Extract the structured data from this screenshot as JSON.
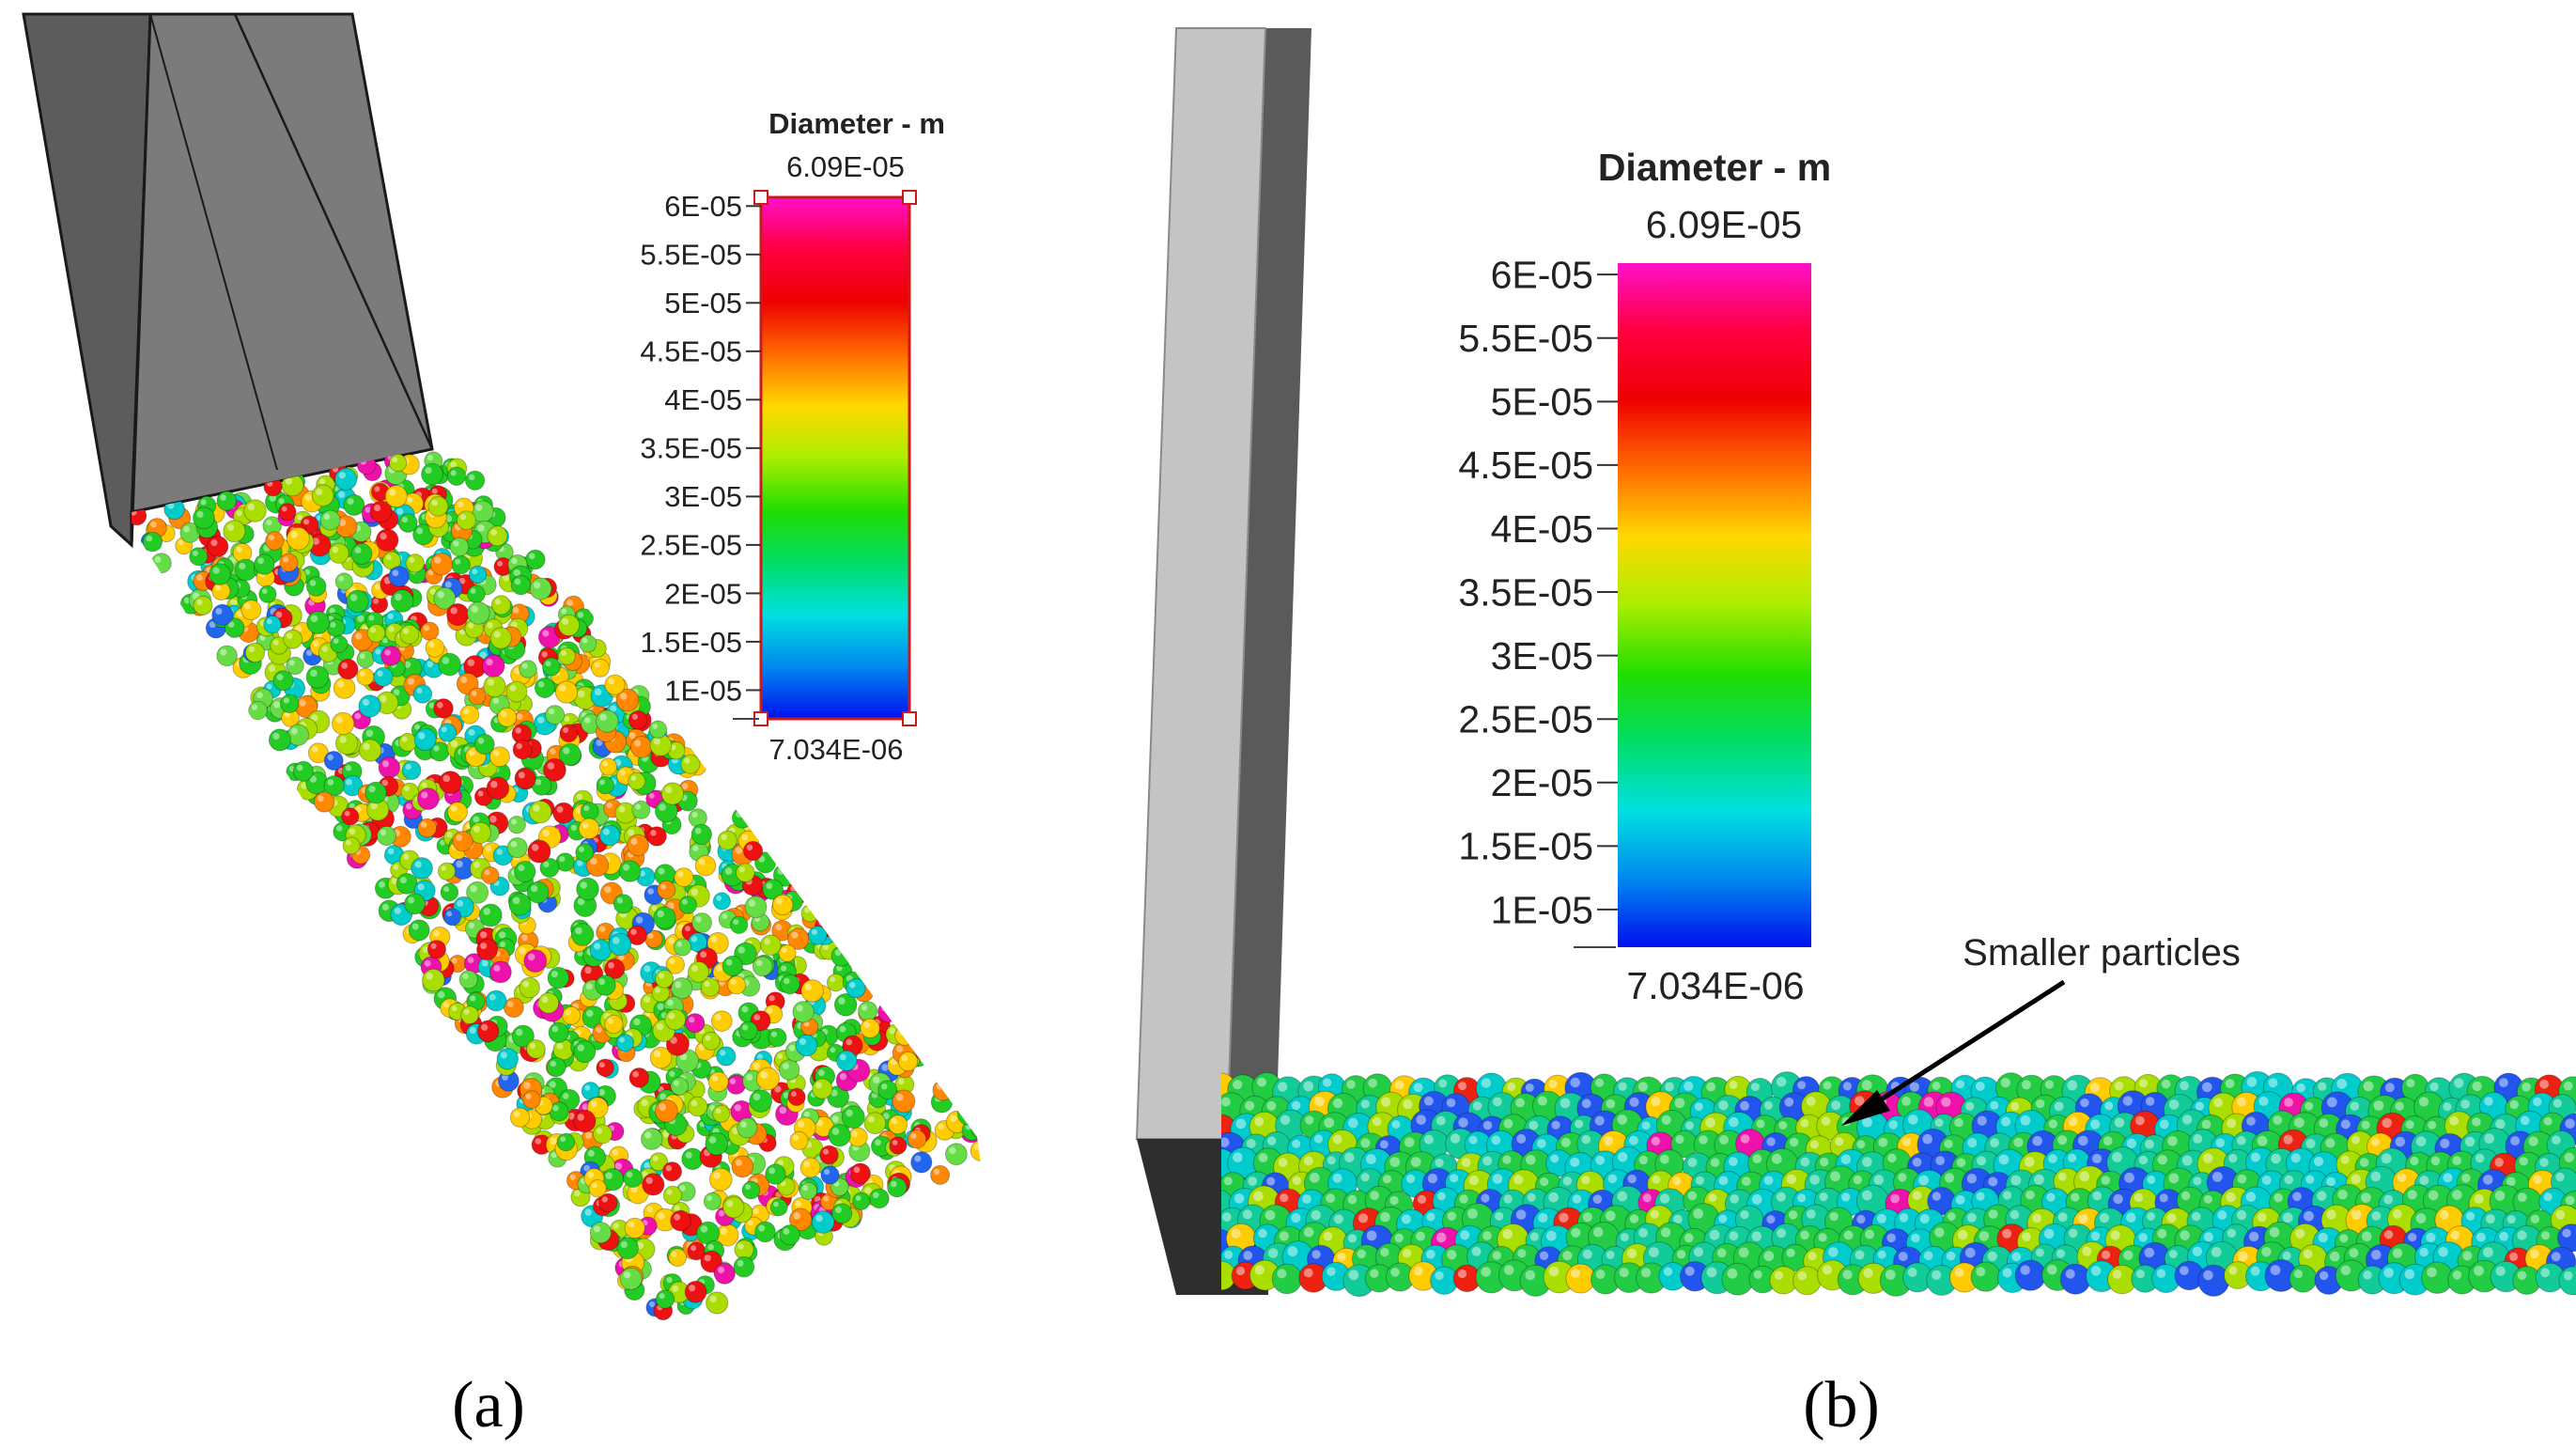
{
  "panels": [
    {
      "id": "a",
      "caption": "(a)",
      "legend": {
        "title": "Diameter - m",
        "max_label": "6.09E-05",
        "min_label": "7.034E-06",
        "max_value": 6.09e-05,
        "min_value": 7.034e-06,
        "ticks": [
          {
            "value": 6e-05,
            "label": "6E-05"
          },
          {
            "value": 5.5e-05,
            "label": "5.5E-05"
          },
          {
            "value": 5e-05,
            "label": "5E-05"
          },
          {
            "value": 4.5e-05,
            "label": "4.5E-05"
          },
          {
            "value": 4e-05,
            "label": "4E-05"
          },
          {
            "value": 3.5e-05,
            "label": "3.5E-05"
          },
          {
            "value": 3e-05,
            "label": "3E-05"
          },
          {
            "value": 2.5e-05,
            "label": "2.5E-05"
          },
          {
            "value": 2e-05,
            "label": "2E-05"
          },
          {
            "value": 1.5e-05,
            "label": "1.5E-05"
          },
          {
            "value": 1e-05,
            "label": "1E-05"
          }
        ]
      }
    },
    {
      "id": "b",
      "caption": "(b)",
      "annotation": "Smaller particles",
      "legend": {
        "title": "Diameter - m",
        "max_label": "6.09E-05",
        "min_label": "7.034E-06",
        "max_value": 6.09e-05,
        "min_value": 7.034e-06,
        "ticks": [
          {
            "value": 6e-05,
            "label": "6E-05"
          },
          {
            "value": 5.5e-05,
            "label": "5.5E-05"
          },
          {
            "value": 5e-05,
            "label": "5E-05"
          },
          {
            "value": 4.5e-05,
            "label": "4.5E-05"
          },
          {
            "value": 4e-05,
            "label": "4E-05"
          },
          {
            "value": 3.5e-05,
            "label": "3.5E-05"
          },
          {
            "value": 3e-05,
            "label": "3E-05"
          },
          {
            "value": 2.5e-05,
            "label": "2.5E-05"
          },
          {
            "value": 2e-05,
            "label": "2E-05"
          },
          {
            "value": 1.5e-05,
            "label": "1.5E-05"
          },
          {
            "value": 1e-05,
            "label": "1E-05"
          }
        ]
      }
    }
  ],
  "colors": {
    "scale_stops": [
      "#ff10c8",
      "#ff0040",
      "#ee0000",
      "#ff6a00",
      "#ffd800",
      "#aaee00",
      "#22dd00",
      "#00dd66",
      "#00e0e0",
      "#0088ee",
      "#0010ee"
    ],
    "chute_face": "#7b7b7b",
    "chute_edge": "#1a1a1a",
    "wall_light": "#c4c4c4",
    "wall_dark": "#4e4e4e",
    "legend_frame": "#cc1a1a"
  }
}
